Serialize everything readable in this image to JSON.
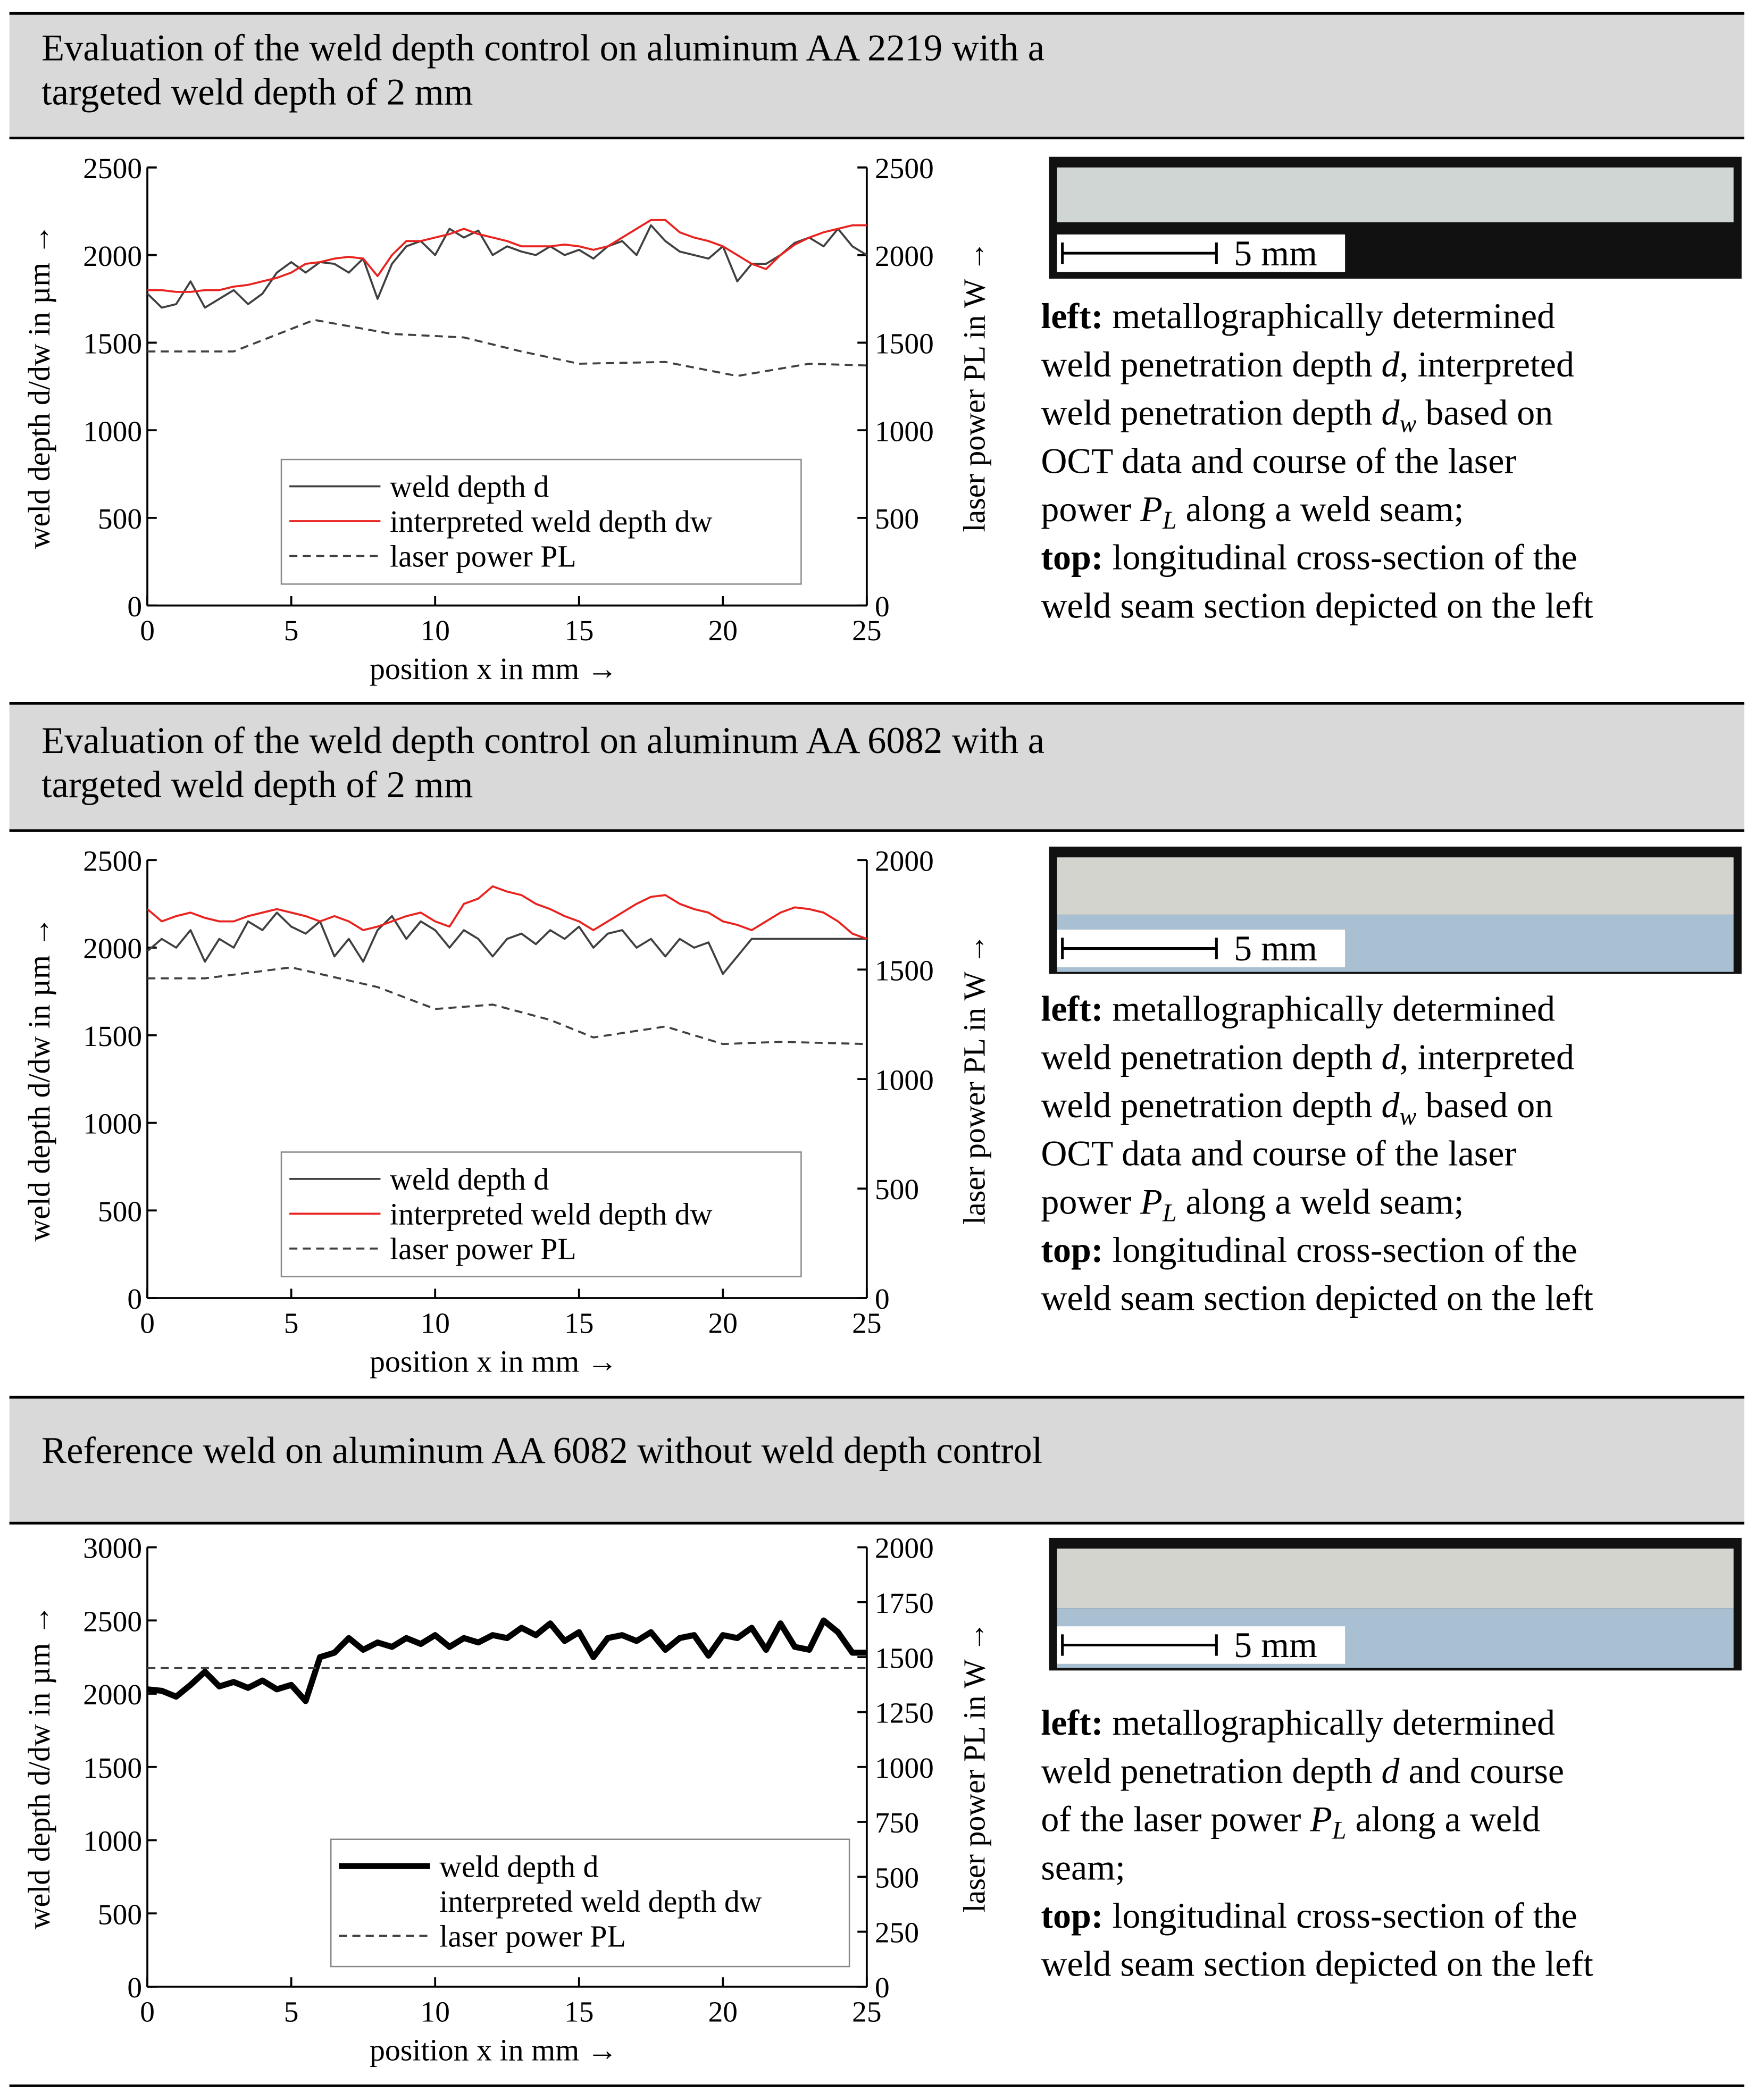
{
  "chart_data": [
    {
      "type": "line",
      "x": [
        0,
        0.5,
        1,
        1.5,
        2,
        2.5,
        3,
        3.5,
        4,
        4.5,
        5,
        5.5,
        6,
        6.5,
        7,
        7.5,
        8,
        8.5,
        9,
        9.5,
        10,
        10.5,
        11,
        11.5,
        12,
        12.5,
        13,
        13.5,
        14,
        14.5,
        15,
        15.5,
        16,
        16.5,
        17,
        17.5,
        18,
        18.5,
        19,
        19.5,
        20,
        20.5,
        21,
        21.5,
        22,
        22.5,
        23,
        23.5,
        24,
        24.5,
        25
      ],
      "xlim": [
        0,
        25
      ],
      "xticks": [
        0,
        5,
        10,
        15,
        20,
        25
      ],
      "ylim": [
        0,
        2500
      ],
      "yticks": [
        0,
        500,
        1000,
        1500,
        2000,
        2500
      ],
      "y2lim": [
        0,
        2500
      ],
      "y2ticks": [
        0,
        500,
        1000,
        1500,
        2000,
        2500
      ],
      "xlabel": "position x in mm →",
      "ylabel": "weld depth d/dw in µm →",
      "y2label": "laser power PL in W →",
      "series": [
        {
          "name": "weld depth d",
          "color": "#404040",
          "line_width": 1.5,
          "values": [
            1780,
            1700,
            1720,
            1850,
            1700,
            1750,
            1800,
            1720,
            1780,
            1900,
            1960,
            1900,
            1960,
            1950,
            1900,
            1980,
            1750,
            1950,
            2050,
            2080,
            2000,
            2150,
            2100,
            2140,
            2000,
            2050,
            2020,
            2000,
            2050,
            2000,
            2030,
            1980,
            2050,
            2080,
            2000,
            2170,
            2080,
            2020,
            2000,
            1980,
            2050,
            1850,
            1950,
            1950,
            2000,
            2070,
            2100,
            2050,
            2150,
            2050,
            2000
          ]
        },
        {
          "name": "interpreted weld depth dw",
          "color": "#e8231f",
          "line_width": 1.5,
          "values": [
            1800,
            1800,
            1790,
            1790,
            1800,
            1800,
            1820,
            1830,
            1850,
            1870,
            1900,
            1950,
            1960,
            1980,
            1990,
            1980,
            1880,
            2000,
            2080,
            2080,
            2100,
            2120,
            2150,
            2120,
            2100,
            2080,
            2050,
            2050,
            2050,
            2060,
            2050,
            2030,
            2050,
            2100,
            2150,
            2200,
            2200,
            2130,
            2100,
            2080,
            2050,
            2000,
            1950,
            1920,
            2000,
            2060,
            2100,
            2130,
            2150,
            2170,
            2170
          ]
        },
        {
          "name": "laser power PL",
          "color": "#404040",
          "line_width": 1.5,
          "dash": true,
          "axis": "y2",
          "x": [
            0,
            3,
            5.8,
            8.5,
            11,
            13,
            15,
            18,
            20.5,
            23,
            25
          ],
          "values": [
            1450,
            1450,
            1630,
            1550,
            1530,
            1450,
            1380,
            1390,
            1310,
            1380,
            1370
          ]
        }
      ]
    },
    {
      "type": "line",
      "x": [
        0,
        0.5,
        1,
        1.5,
        2,
        2.5,
        3,
        3.5,
        4,
        4.5,
        5,
        5.5,
        6,
        6.5,
        7,
        7.5,
        8,
        8.5,
        9,
        9.5,
        10,
        10.5,
        11,
        11.5,
        12,
        12.5,
        13,
        13.5,
        14,
        14.5,
        15,
        15.5,
        16,
        16.5,
        17,
        17.5,
        18,
        18.5,
        19,
        19.5,
        20,
        20.5,
        21,
        21.5,
        22,
        22.5,
        23,
        23.5,
        24,
        24.5,
        25
      ],
      "xlim": [
        0,
        25
      ],
      "xticks": [
        0,
        5,
        10,
        15,
        20,
        25
      ],
      "ylim": [
        0,
        2500
      ],
      "yticks": [
        0,
        500,
        1000,
        1500,
        2000,
        2500
      ],
      "y2lim": [
        0,
        2000
      ],
      "y2ticks": [
        0,
        500,
        1000,
        1500,
        2000
      ],
      "xlabel": "position x in mm →",
      "ylabel": "weld depth d/dw in µm →",
      "y2label": "laser power PL in W →",
      "series": [
        {
          "name": "weld depth d",
          "color": "#404040",
          "line_width": 1.5,
          "values": [
            1980,
            2050,
            2000,
            2100,
            1920,
            2050,
            2000,
            2150,
            2100,
            2200,
            2120,
            2080,
            2150,
            1950,
            2050,
            1920,
            2100,
            2180,
            2050,
            2150,
            2100,
            2000,
            2100,
            2050,
            1950,
            2050,
            2080,
            2020,
            2100,
            2050,
            2120,
            2000,
            2080,
            2100,
            2000,
            2050,
            1950,
            2050,
            2000,
            2030,
            1850,
            1950,
            2050,
            2050,
            2050,
            2050,
            2050,
            2050,
            2050,
            2050,
            2050
          ]
        },
        {
          "name": "interpreted weld depth dw",
          "color": "#e8231f",
          "line_width": 1.5,
          "values": [
            2220,
            2150,
            2180,
            2200,
            2170,
            2150,
            2150,
            2180,
            2200,
            2220,
            2200,
            2180,
            2150,
            2180,
            2150,
            2100,
            2120,
            2150,
            2180,
            2200,
            2150,
            2120,
            2250,
            2280,
            2350,
            2320,
            2300,
            2250,
            2220,
            2180,
            2150,
            2100,
            2150,
            2200,
            2250,
            2290,
            2300,
            2250,
            2220,
            2200,
            2150,
            2130,
            2100,
            2150,
            2200,
            2230,
            2220,
            2200,
            2150,
            2080,
            2050
          ]
        },
        {
          "name": "laser power PL",
          "color": "#404040",
          "line_width": 1.5,
          "dash": true,
          "axis": "y2",
          "x": [
            0,
            2,
            5,
            8,
            10,
            12,
            14,
            15.5,
            18,
            20,
            22,
            25
          ],
          "values": [
            1460,
            1460,
            1510,
            1420,
            1320,
            1340,
            1270,
            1190,
            1240,
            1160,
            1170,
            1160
          ]
        }
      ]
    },
    {
      "type": "line",
      "x": [
        0,
        0.5,
        1,
        1.5,
        2,
        2.5,
        3,
        3.5,
        4,
        4.5,
        5,
        5.5,
        6,
        6.5,
        7,
        7.5,
        8,
        8.5,
        9,
        9.5,
        10,
        10.5,
        11,
        11.5,
        12,
        12.5,
        13,
        13.5,
        14,
        14.5,
        15,
        15.5,
        16,
        16.5,
        17,
        17.5,
        18,
        18.5,
        19,
        19.5,
        20,
        20.5,
        21,
        21.5,
        22,
        22.5,
        23,
        23.5,
        24,
        24.5,
        25
      ],
      "xlim": [
        0,
        25
      ],
      "xticks": [
        0,
        5,
        10,
        15,
        20,
        25
      ],
      "ylim": [
        0,
        3000
      ],
      "yticks": [
        0,
        500,
        1000,
        1500,
        2000,
        2500,
        3000
      ],
      "y2lim": [
        0,
        2000
      ],
      "y2ticks": [
        0,
        250,
        500,
        750,
        1000,
        1250,
        1500,
        1750,
        2000
      ],
      "xlabel": "position x in mm →",
      "ylabel": "weld depth d/dw in µm →",
      "y2label": "laser power PL in W →",
      "series": [
        {
          "name": "weld depth d",
          "color": "#000000",
          "line_width": 4.5,
          "values": [
            2030,
            2020,
            1980,
            2060,
            2150,
            2050,
            2080,
            2040,
            2090,
            2030,
            2060,
            1950,
            2250,
            2280,
            2380,
            2300,
            2350,
            2320,
            2380,
            2340,
            2400,
            2320,
            2380,
            2350,
            2400,
            2380,
            2450,
            2400,
            2480,
            2360,
            2420,
            2250,
            2380,
            2400,
            2360,
            2420,
            2300,
            2380,
            2400,
            2260,
            2400,
            2380,
            2450,
            2300,
            2480,
            2320,
            2300,
            2500,
            2420,
            2280,
            2280
          ]
        },
        {
          "name": "interpreted weld depth dw",
          "color": null,
          "values": [
            null,
            null,
            null,
            null,
            null,
            null,
            null,
            null,
            null,
            null,
            null,
            null,
            null,
            null,
            null,
            null,
            null,
            null,
            null,
            null,
            null,
            null,
            null,
            null,
            null,
            null,
            null,
            null,
            null,
            null,
            null,
            null,
            null,
            null,
            null,
            null,
            null,
            null,
            null,
            null,
            null,
            null,
            null,
            null,
            null,
            null,
            null,
            null,
            null,
            null,
            null
          ]
        },
        {
          "name": "laser power PL",
          "color": "#404040",
          "line_width": 1.5,
          "dash": true,
          "axis": "y2",
          "x": [
            0,
            25
          ],
          "values": [
            1450,
            1450
          ]
        }
      ]
    }
  ],
  "panels": [
    {
      "title": [
        "Evaluation of the weld depth control on aluminum AA 2219 with a",
        "targeted weld depth of 2 mm"
      ],
      "scale_label": "5 mm",
      "description": [
        [
          {
            "text": "left:",
            "style": "bold"
          },
          " metallographically determined"
        ],
        [
          "weld penetration depth ",
          {
            "text": "d",
            "style": "italic"
          },
          ", interpreted"
        ],
        [
          "weld penetration depth ",
          {
            "text": "d",
            "style": "italic"
          },
          {
            "text": "w",
            "style": "sub"
          },
          " based on"
        ],
        [
          "OCT data and course of the laser"
        ],
        [
          "power ",
          {
            "text": "P",
            "style": "italic"
          },
          {
            "text": "L",
            "style": "sub"
          },
          " along a weld seam;"
        ],
        [
          {
            "text": "top:",
            "style": "bold"
          },
          " longitudinal cross-section of the"
        ],
        [
          "weld seam section depicted on the left"
        ]
      ]
    },
    {
      "title": [
        "Evaluation of the weld depth control on aluminum AA 6082 with a",
        "targeted weld depth of 2 mm"
      ],
      "scale_label": "5 mm",
      "description": [
        [
          {
            "text": "left:",
            "style": "bold"
          },
          " metallographically determined"
        ],
        [
          "weld penetration depth ",
          {
            "text": "d",
            "style": "italic"
          },
          ", interpreted"
        ],
        [
          "weld penetration depth ",
          {
            "text": "d",
            "style": "italic"
          },
          {
            "text": "w",
            "style": "sub"
          },
          " based on"
        ],
        [
          "OCT data and course of the laser"
        ],
        [
          "power ",
          {
            "text": "P",
            "style": "italic"
          },
          {
            "text": "L",
            "style": "sub"
          },
          " along a weld seam;"
        ],
        [
          {
            "text": "top:",
            "style": "bold"
          },
          " longitudinal cross-section of the"
        ],
        [
          "weld seam section depicted on the left"
        ]
      ]
    },
    {
      "title": [
        "Reference weld on aluminum AA 6082 without weld depth control"
      ],
      "scale_label": "5 mm",
      "description": [
        [
          {
            "text": "left:",
            "style": "bold"
          },
          " metallographically determined"
        ],
        [
          "weld penetration depth ",
          {
            "text": "d",
            "style": "italic"
          },
          " and course"
        ],
        [
          "of the laser power ",
          {
            "text": "P",
            "style": "italic"
          },
          {
            "text": "L",
            "style": "sub"
          },
          " along a weld"
        ],
        [
          "seam;"
        ],
        [
          {
            "text": "top:",
            "style": "bold"
          },
          " longitudinal cross-section of the"
        ],
        [
          "weld seam section depicted on the left"
        ]
      ]
    }
  ]
}
